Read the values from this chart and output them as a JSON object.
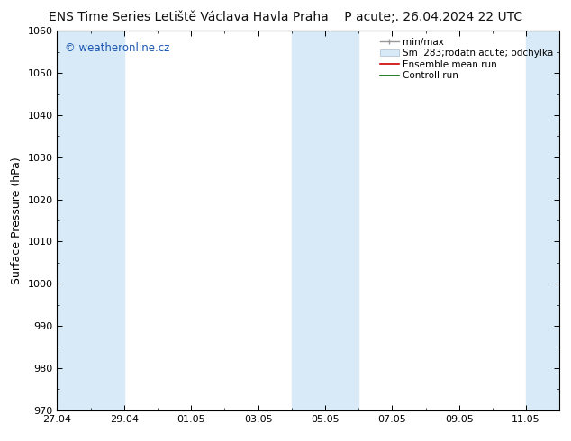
{
  "title": "ENS Time Series Letiště Václava Havla Praha",
  "title_right": "P acute;. 26.04.2024 22 UTC",
  "ylabel": "Surface Pressure (hPa)",
  "ylim": [
    970,
    1060
  ],
  "yticks": [
    970,
    980,
    990,
    1000,
    1010,
    1020,
    1030,
    1040,
    1050,
    1060
  ],
  "xtick_labels": [
    "27.04",
    "29.04",
    "01.05",
    "03.05",
    "05.05",
    "07.05",
    "09.05",
    "11.05"
  ],
  "background_color": "#ffffff",
  "plot_bg_color": "#ffffff",
  "band_color": "#d8eaf8",
  "watermark": "© weatheronline.cz",
  "watermark_color": "#1a56b0",
  "legend_items": [
    "min/max",
    "Sm  283;rodatn acute; odchylka",
    "Ensemble mean run",
    "Controll run"
  ],
  "ensemble_mean_color": "#cc0000",
  "control_run_color": "#006600",
  "title_fontsize": 10,
  "tick_fontsize": 8,
  "ylabel_fontsize": 9
}
